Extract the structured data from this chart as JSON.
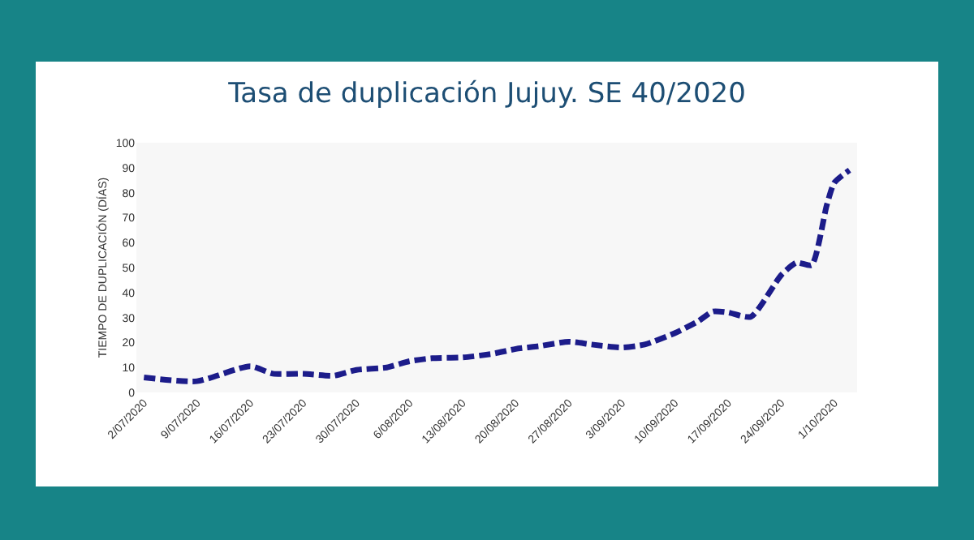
{
  "chart_data": {
    "type": "line",
    "title": "Tasa de duplicación Jujuy. SE 40/2020",
    "ylabel": "TIEMPO DE DUPLICACIÓN (DÍAS)",
    "x": [
      "2020-07-02",
      "2020-07-09",
      "2020-07-16",
      "2020-07-19",
      "2020-07-23",
      "2020-07-27",
      "2020-07-30",
      "2020-08-03",
      "2020-08-06",
      "2020-08-09",
      "2020-08-13",
      "2020-08-17",
      "2020-08-20",
      "2020-08-23",
      "2020-08-27",
      "2020-08-30",
      "2020-09-03",
      "2020-09-06",
      "2020-09-10",
      "2020-09-13",
      "2020-09-15",
      "2020-09-17",
      "2020-09-20",
      "2020-09-24",
      "2020-09-26",
      "2020-09-28",
      "2020-09-30",
      "2020-10-01",
      "2020-10-03"
    ],
    "series": [
      {
        "color": "#1c1c8a",
        "values": [
          6,
          4.5,
          10.5,
          7.5,
          7.5,
          6.7,
          9,
          10,
          12.5,
          13.7,
          14,
          15.5,
          17.4,
          18.5,
          20.3,
          19.2,
          18,
          19.2,
          23.8,
          28.4,
          32.4,
          32,
          30.3,
          47,
          52,
          51,
          75,
          84,
          89
        ]
      }
    ],
    "xlim": [
      "2020-07-01",
      "2020-10-04"
    ],
    "xticks": [
      {
        "value": "2020-07-02",
        "label": "2/07/2020"
      },
      {
        "value": "2020-07-09",
        "label": "9/07/2020"
      },
      {
        "value": "2020-07-16",
        "label": "16/07/2020"
      },
      {
        "value": "2020-07-23",
        "label": "23/07/2020"
      },
      {
        "value": "2020-07-30",
        "label": "30/07/2020"
      },
      {
        "value": "2020-08-06",
        "label": "6/08/2020"
      },
      {
        "value": "2020-08-13",
        "label": "13/08/2020"
      },
      {
        "value": "2020-08-20",
        "label": "20/08/2020"
      },
      {
        "value": "2020-08-27",
        "label": "27/08/2020"
      },
      {
        "value": "2020-09-03",
        "label": "3/09/2020"
      },
      {
        "value": "2020-09-10",
        "label": "10/09/2020"
      },
      {
        "value": "2020-09-17",
        "label": "17/09/2020"
      },
      {
        "value": "2020-09-24",
        "label": "24/09/2020"
      },
      {
        "value": "2020-10-01",
        "label": "1/10/2020"
      }
    ],
    "ylim": [
      0,
      100
    ],
    "yticks": [
      0,
      10,
      20,
      30,
      40,
      50,
      60,
      70,
      80,
      90,
      100
    ],
    "grid": false,
    "legend": false,
    "marker": "none",
    "line_style": "dashed"
  }
}
